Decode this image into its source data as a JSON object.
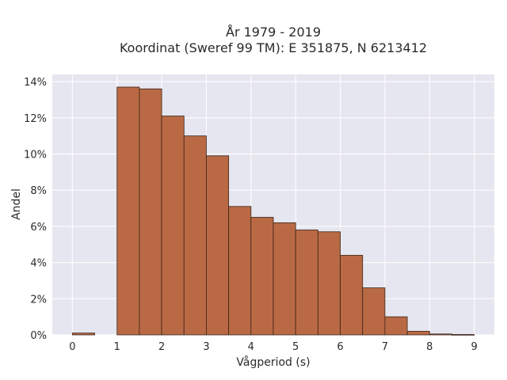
{
  "chart_data": {
    "type": "bar",
    "title_line1": "År 1979 - 2019",
    "title_line2": "Koordinat (Sweref 99 TM): E 351875, N 6213412",
    "xlabel": "Vågperiod (s)",
    "ylabel": "Andel",
    "bin_width": 0.5,
    "bins": [
      {
        "x0": 0.0,
        "value": 0.1
      },
      {
        "x0": 0.5,
        "value": 0.0
      },
      {
        "x0": 1.0,
        "value": 13.7
      },
      {
        "x0": 1.5,
        "value": 13.6
      },
      {
        "x0": 2.0,
        "value": 12.1
      },
      {
        "x0": 2.5,
        "value": 11.0
      },
      {
        "x0": 3.0,
        "value": 9.9
      },
      {
        "x0": 3.5,
        "value": 7.1
      },
      {
        "x0": 4.0,
        "value": 6.5
      },
      {
        "x0": 4.5,
        "value": 6.2
      },
      {
        "x0": 5.0,
        "value": 5.8
      },
      {
        "x0": 5.5,
        "value": 5.7
      },
      {
        "x0": 6.0,
        "value": 4.4
      },
      {
        "x0": 6.5,
        "value": 2.6
      },
      {
        "x0": 7.0,
        "value": 1.0
      },
      {
        "x0": 7.5,
        "value": 0.2
      },
      {
        "x0": 8.0,
        "value": 0.05
      },
      {
        "x0": 8.5,
        "value": 0.02
      }
    ],
    "xlim": [
      -0.45,
      9.45
    ],
    "ylim": [
      0,
      14.4
    ],
    "x_ticks": [
      "0",
      "1",
      "2",
      "3",
      "4",
      "5",
      "6",
      "7",
      "8",
      "9"
    ],
    "y_ticks": [
      "0%",
      "2%",
      "4%",
      "6%",
      "8%",
      "10%",
      "12%",
      "14%"
    ],
    "grid": true,
    "colors": {
      "bar_fill": "#b96a45",
      "bar_stroke": "#3a2418",
      "plot_bg": "#e6e6f0",
      "grid": "#ffffff"
    }
  }
}
